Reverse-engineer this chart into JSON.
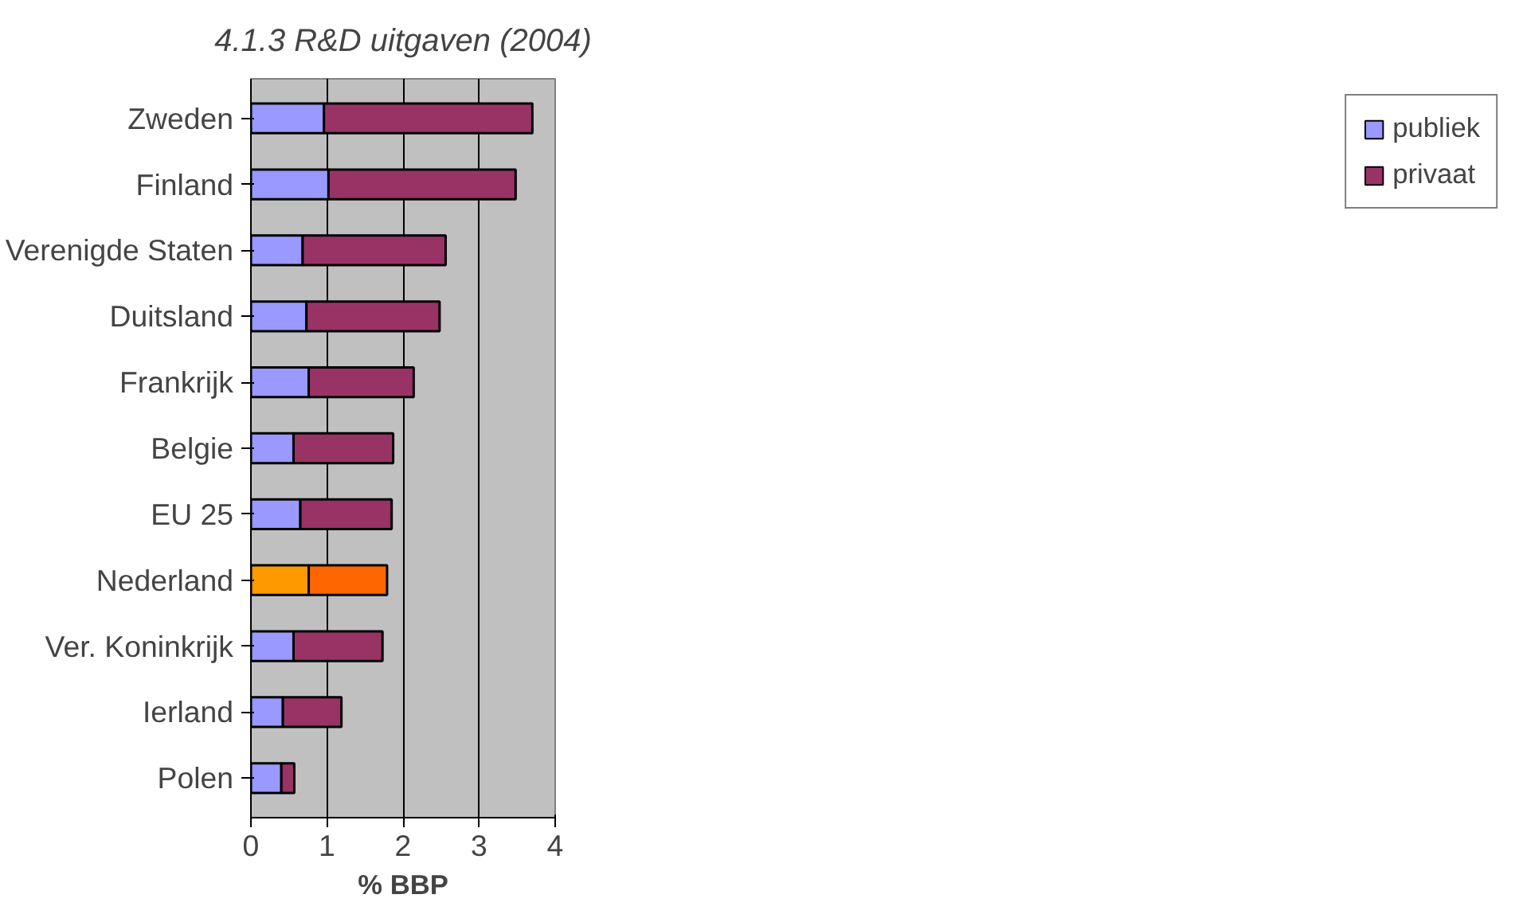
{
  "chart_data": {
    "type": "bar",
    "orientation": "horizontal",
    "stacked": true,
    "title": "4.1.3 R&D uitgaven (2004)",
    "xlabel": "% BBP",
    "categories": [
      "Zweden",
      "Finland",
      "Verenigde Staten",
      "Duitsland",
      "Frankrijk",
      "Belgie",
      "EU 25",
      "Nederland",
      "Ver. Koninkrijk",
      "Ierland",
      "Polen"
    ],
    "series": [
      {
        "name": "publiek",
        "color": "#9999ff",
        "colors": [
          "#9999ff",
          "#9999ff",
          "#9999ff",
          "#9999ff",
          "#9999ff",
          "#9999ff",
          "#9999ff",
          "#ff9900",
          "#9999ff",
          "#9999ff",
          "#9999ff"
        ],
        "values": [
          0.96,
          1.02,
          0.68,
          0.73,
          0.76,
          0.56,
          0.65,
          0.76,
          0.56,
          0.42,
          0.4
        ]
      },
      {
        "name": "privaat",
        "color": "#993366",
        "colors": [
          "#993366",
          "#993366",
          "#993366",
          "#993366",
          "#993366",
          "#993366",
          "#993366",
          "#ff6600",
          "#993366",
          "#993366",
          "#993366"
        ],
        "values": [
          2.74,
          2.46,
          1.88,
          1.75,
          1.38,
          1.31,
          1.2,
          1.03,
          1.17,
          0.77,
          0.17
        ]
      }
    ],
    "xlim": [
      0,
      4
    ],
    "xticks": [
      0,
      1,
      2,
      3,
      4
    ],
    "grid": "x",
    "legend": "right"
  }
}
